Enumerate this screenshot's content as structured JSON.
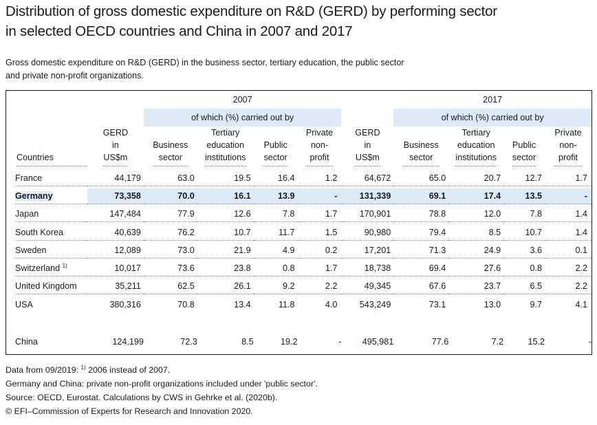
{
  "title_line1": "Distribution of gross domestic expenditure on R&D (GERD) by performing sector",
  "title_line2": "in selected OECD countries and China in 2007 and 2017",
  "subtitle_line1": "Gross domestic expenditure on R&D (GERD) in the business sector, tertiary education, the public sector",
  "subtitle_line2": "and private non-profit organizations.",
  "year_2007": "2007",
  "year_2017": "2017",
  "of_which_2007": "of which (%) carried out by",
  "of_which_2017": "of which (%) carried out by",
  "headers": {
    "country": "Countries",
    "gerd": [
      "GERD",
      "in",
      "US$m"
    ],
    "business": [
      "Business",
      "sector"
    ],
    "tertiary": [
      "Tertiary",
      "education",
      "institutions"
    ],
    "public": [
      "Public",
      "sector"
    ],
    "private": [
      "Private",
      "non-",
      "profit"
    ]
  },
  "rows": [
    {
      "country": "France",
      "note": "",
      "g07": "44,179",
      "b07": "63.0",
      "t07": "19.5",
      "p07": "16.4",
      "n07": "1.2",
      "g17": "64,672",
      "b17": "65.0",
      "t17": "20.7",
      "p17": "12.7",
      "n17": "1.7"
    },
    {
      "country": "Germany",
      "note": "",
      "g07": "73,358",
      "b07": "70.0",
      "t07": "16.1",
      "p07": "13.9",
      "n07": "-",
      "g17": "131,339",
      "b17": "69.1",
      "t17": "17.4",
      "p17": "13.5",
      "n17": "-"
    },
    {
      "country": "Japan",
      "note": "",
      "g07": "147,484",
      "b07": "77.9",
      "t07": "12.6",
      "p07": "7.8",
      "n07": "1.7",
      "g17": "170,901",
      "b17": "78.8",
      "t17": "12.0",
      "p17": "7.8",
      "n17": "1.4"
    },
    {
      "country": "South Korea",
      "note": "",
      "g07": "40,639",
      "b07": "76.2",
      "t07": "10.7",
      "p07": "11.7",
      "n07": "1.5",
      "g17": "90,980",
      "b17": "79.4",
      "t17": "8.5",
      "p17": "10.7",
      "n17": "1.4"
    },
    {
      "country": "Sweden",
      "note": "",
      "g07": "12,089",
      "b07": "73.0",
      "t07": "21.9",
      "p07": "4.9",
      "n07": "0.2",
      "g17": "17,201",
      "b17": "71.3",
      "t17": "24.9",
      "p17": "3.6",
      "n17": "0.1"
    },
    {
      "country": "Switzerland",
      "note": "1)",
      "g07": "10,017",
      "b07": "73.6",
      "t07": "23.8",
      "p07": "0.8",
      "n07": "1.7",
      "g17": "18,738",
      "b17": "69.4",
      "t17": "27.6",
      "p17": "0.8",
      "n17": "2.2"
    },
    {
      "country": "United Kingdom",
      "note": "",
      "g07": "35,211",
      "b07": "62.5",
      "t07": "26.1",
      "p07": "9.2",
      "n07": "2.2",
      "g17": "49,345",
      "b17": "67.6",
      "t17": "23.7",
      "p17": "6.5",
      "n17": "2.2"
    },
    {
      "country": "USA",
      "note": "",
      "g07": "380,316",
      "b07": "70.8",
      "t07": "13.4",
      "p07": "11.8",
      "n07": "4.0",
      "g17": "543,249",
      "b17": "73.1",
      "t17": "13.0",
      "p17": "9.7",
      "n17": "4.1"
    }
  ],
  "china": {
    "country": "China",
    "g07": "124,199",
    "b07": "72.3",
    "t07": "8.5",
    "p07": "19.2",
    "n07": "-",
    "g17": "495,981",
    "b17": "77.6",
    "t17": "7.2",
    "p17": "15.2",
    "n17": "-"
  },
  "footnotes": {
    "line1_prefix": "Data from 09/2019: ",
    "line1_marker": "1)",
    "line1_text": " 2006 instead of 2007.",
    "line2": "Germany and China: private non-profit organizations included under 'public sector'.",
    "line3": "Source: OECD, Eurostat. Calculations by CWS in Gehrke et al. (2020b).",
    "line4": "© EFI–Commission of Experts for Research and Innovation 2020."
  }
}
